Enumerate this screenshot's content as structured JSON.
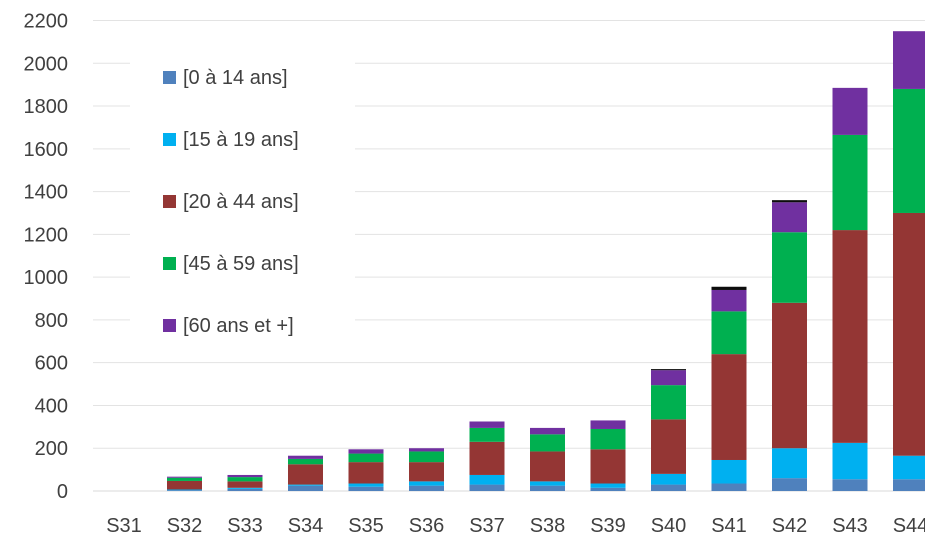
{
  "chart_data": {
    "type": "bar",
    "stacked": true,
    "categories": [
      "S31",
      "S32",
      "S33",
      "S34",
      "S35",
      "S36",
      "S37",
      "S38",
      "S39",
      "S40",
      "S41",
      "S42",
      "S43",
      "S44"
    ],
    "series": [
      {
        "name": "[0 à 14 ans]",
        "color": "#4F81BD",
        "values": [
          0,
          4,
          10,
          25,
          20,
          25,
          30,
          25,
          15,
          30,
          35,
          60,
          55,
          55
        ]
      },
      {
        "name": "[15 à 19 ans]",
        "color": "#00B0F0",
        "values": [
          0,
          3,
          5,
          5,
          15,
          20,
          45,
          20,
          20,
          50,
          110,
          140,
          170,
          110
        ]
      },
      {
        "name": "[20 à 44 ans]",
        "color": "#943634",
        "values": [
          0,
          40,
          30,
          95,
          100,
          90,
          155,
          140,
          160,
          255,
          495,
          680,
          995,
          1135
        ]
      },
      {
        "name": "[45 à 59 ans]",
        "color": "#00B050",
        "values": [
          0,
          15,
          20,
          25,
          40,
          50,
          65,
          80,
          95,
          160,
          200,
          330,
          445,
          580
        ]
      },
      {
        "name": "[60 ans et +]",
        "color": "#7030A0",
        "values": [
          0,
          5,
          10,
          15,
          20,
          15,
          30,
          30,
          40,
          70,
          100,
          140,
          220,
          270
        ]
      },
      {
        "name": "",
        "color": "#0D0D0D",
        "values": [
          0,
          0,
          0,
          0,
          0,
          0,
          0,
          0,
          0,
          5,
          15,
          10,
          0,
          0
        ]
      }
    ],
    "ylim": [
      0,
      2200
    ],
    "yticks": [
      0,
      200,
      400,
      600,
      800,
      1000,
      1200,
      1400,
      1600,
      1800,
      2000,
      2200
    ],
    "grid": true,
    "legend_position": "left",
    "title": "",
    "xlabel": "",
    "ylabel": ""
  }
}
